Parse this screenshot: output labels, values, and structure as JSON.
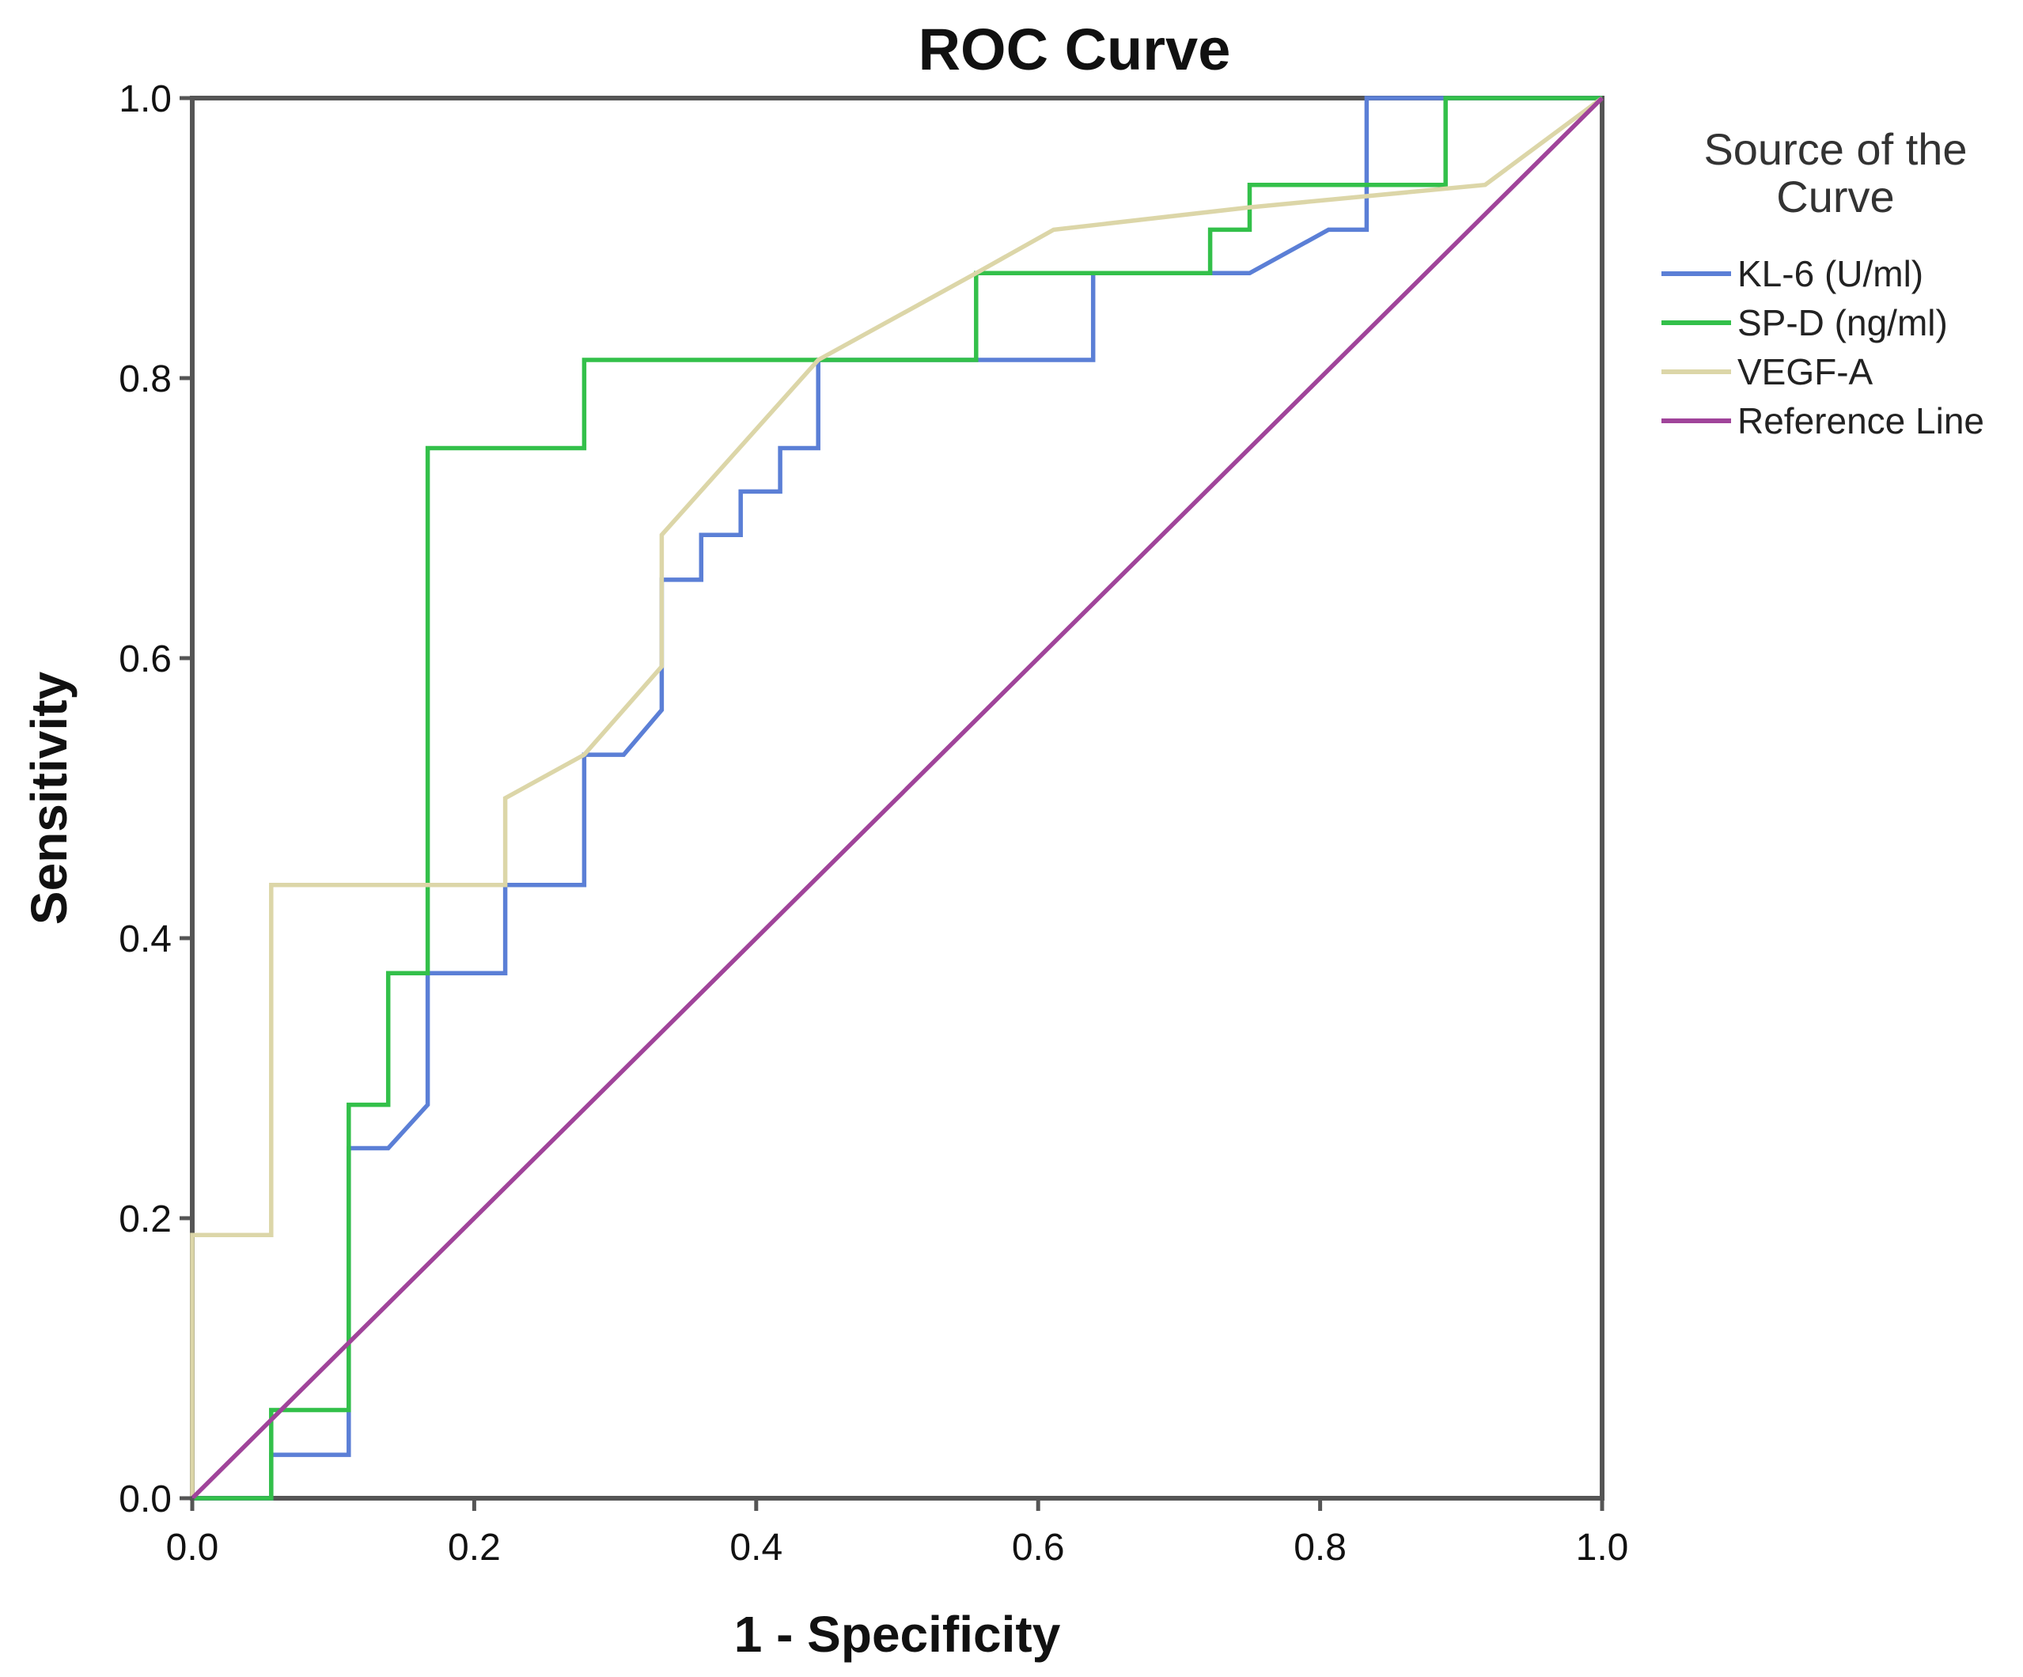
{
  "chart_data": {
    "type": "line",
    "title": "ROC Curve",
    "xlabel": "1 - Specificity",
    "ylabel": "Sensitivity",
    "xlim": [
      0,
      1
    ],
    "ylim": [
      0,
      1
    ],
    "xticks": [
      "0.0",
      "0.2",
      "0.4",
      "0.6",
      "0.8",
      "1.0"
    ],
    "yticks": [
      "0.0",
      "0.2",
      "0.4",
      "0.6",
      "0.8",
      "1.0"
    ],
    "grid": false,
    "legend": {
      "title_lines": [
        "Source of the",
        "Curve"
      ],
      "placement": "right"
    },
    "series": [
      {
        "name": "KL-6 (U/ml)",
        "color": "#5b7fd6",
        "points": [
          [
            0.0,
            0.0
          ],
          [
            0.056,
            0.0
          ],
          [
            0.056,
            0.031
          ],
          [
            0.111,
            0.031
          ],
          [
            0.111,
            0.25
          ],
          [
            0.139,
            0.25
          ],
          [
            0.167,
            0.281
          ],
          [
            0.167,
            0.375
          ],
          [
            0.222,
            0.375
          ],
          [
            0.222,
            0.438
          ],
          [
            0.278,
            0.438
          ],
          [
            0.278,
            0.531
          ],
          [
            0.306,
            0.531
          ],
          [
            0.333,
            0.563
          ],
          [
            0.333,
            0.656
          ],
          [
            0.361,
            0.656
          ],
          [
            0.361,
            0.688
          ],
          [
            0.389,
            0.688
          ],
          [
            0.389,
            0.719
          ],
          [
            0.417,
            0.719
          ],
          [
            0.417,
            0.75
          ],
          [
            0.444,
            0.75
          ],
          [
            0.444,
            0.813
          ],
          [
            0.639,
            0.813
          ],
          [
            0.639,
            0.875
          ],
          [
            0.722,
            0.875
          ],
          [
            0.75,
            0.875
          ],
          [
            0.806,
            0.906
          ],
          [
            0.833,
            0.906
          ],
          [
            0.833,
            1.0
          ],
          [
            1.0,
            1.0
          ]
        ]
      },
      {
        "name": "SP-D (ng/ml)",
        "color": "#33c04a",
        "points": [
          [
            0.0,
            0.0
          ],
          [
            0.056,
            0.0
          ],
          [
            0.056,
            0.063
          ],
          [
            0.111,
            0.063
          ],
          [
            0.111,
            0.281
          ],
          [
            0.139,
            0.281
          ],
          [
            0.139,
            0.375
          ],
          [
            0.167,
            0.375
          ],
          [
            0.167,
            0.75
          ],
          [
            0.278,
            0.75
          ],
          [
            0.278,
            0.813
          ],
          [
            0.556,
            0.813
          ],
          [
            0.556,
            0.875
          ],
          [
            0.722,
            0.875
          ],
          [
            0.722,
            0.906
          ],
          [
            0.75,
            0.906
          ],
          [
            0.75,
            0.938
          ],
          [
            0.889,
            0.938
          ],
          [
            0.889,
            1.0
          ],
          [
            1.0,
            1.0
          ]
        ]
      },
      {
        "name": "VEGF-A",
        "color": "#dcd6a8",
        "points": [
          [
            0.0,
            0.0
          ],
          [
            0.0,
            0.188
          ],
          [
            0.056,
            0.188
          ],
          [
            0.056,
            0.438
          ],
          [
            0.222,
            0.438
          ],
          [
            0.222,
            0.5
          ],
          [
            0.278,
            0.531
          ],
          [
            0.333,
            0.594
          ],
          [
            0.333,
            0.688
          ],
          [
            0.444,
            0.813
          ],
          [
            0.556,
            0.875
          ],
          [
            0.611,
            0.906
          ],
          [
            0.75,
            0.922
          ],
          [
            0.917,
            0.938
          ],
          [
            1.0,
            1.0
          ]
        ]
      },
      {
        "name": "Reference Line",
        "color": "#a0449a",
        "points": [
          [
            0.0,
            0.0
          ],
          [
            1.0,
            1.0
          ]
        ]
      }
    ]
  }
}
